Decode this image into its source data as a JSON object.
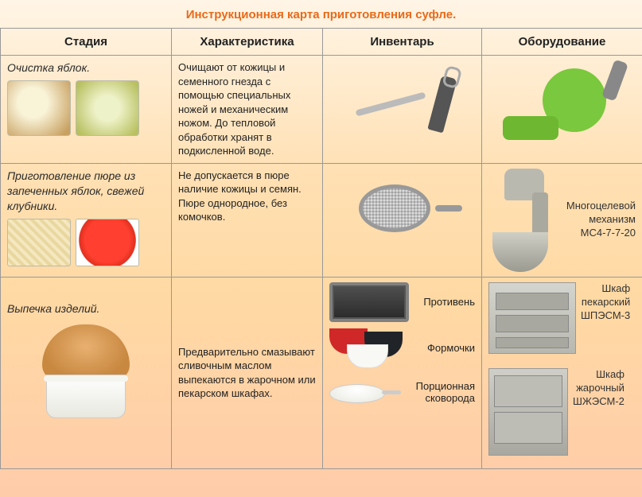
{
  "title_color": "#e86a1a",
  "title": "Инструкционная карта  приготовления суфле.",
  "columns": {
    "stage": "Стадия",
    "characteristic": "Характеристика",
    "inventory": "Инвентарь",
    "equipment": "Оборудование"
  },
  "rows": [
    {
      "stage": "Очистка яблок.",
      "characteristic": "Очищают от кожицы и семенного гнезда с помощью специальных ножей и механическим ножом. До тепловой обработки хранят в подкисленной воде.",
      "inventory_items": [],
      "equipment_label": ""
    },
    {
      "stage": "Приготовление пюре из запеченных яблок, свежей клубники.",
      "characteristic": "Не допускается в пюре наличие кожицы и семян. Пюре однородное, без комочков.",
      "equipment_label": "Многоцелевой\nмеханизм\nМС4-7-7-20"
    },
    {
      "stage": "Выпечка изделий.",
      "characteristic": "Предварительно смазывают сливочным маслом выпекаются в жарочном или пекарском шкафах.",
      "inventory": {
        "tray": "Противень",
        "molds": "Формочки",
        "pan": "Порционная\nсковорода"
      },
      "equipment": {
        "oven1": "Шкаф\nпекарский\nШПЭСМ-3",
        "oven2": "Шкаф\nжарочный\nШЖЭСМ-2"
      }
    }
  ]
}
